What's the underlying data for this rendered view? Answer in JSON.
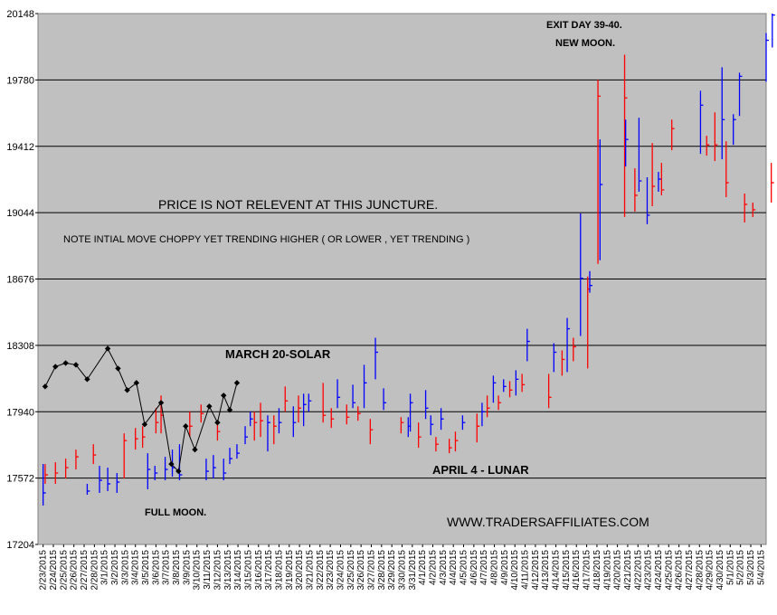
{
  "chart_data": {
    "type": "bar",
    "subtype": "ohlc-range",
    "title": "",
    "xlabel": "",
    "ylabel": "",
    "ylim": [
      17204,
      20148
    ],
    "yticks": [
      17204,
      17572,
      17940,
      18308,
      18676,
      19044,
      19412,
      19780,
      20148
    ],
    "grid": "horizontal",
    "legend": "none",
    "colors": {
      "plot_bg": "#c0c0c0",
      "up": "#ff0000",
      "down": "#0000ff",
      "overlay": "#000000",
      "grid": "#000000"
    },
    "x": [
      "2/23/2015",
      "2/24/2015",
      "2/25/2015",
      "2/26/2015",
      "2/27/2015",
      "2/28/2015",
      "3/1/2015",
      "3/2/2015",
      "3/3/2015",
      "3/4/2015",
      "3/5/2015",
      "3/6/2015",
      "3/7/2015",
      "3/8/2015",
      "3/9/2015",
      "3/10/2015",
      "3/11/2015",
      "3/12/2015",
      "3/13/2015",
      "3/14/2015",
      "3/15/2015",
      "3/16/2015",
      "3/17/2015",
      "3/18/2015",
      "3/19/2015",
      "3/20/2015",
      "3/21/2015",
      "3/22/2015",
      "3/23/2015",
      "3/24/2015",
      "3/25/2015",
      "3/26/2015",
      "3/27/2015",
      "3/28/2015",
      "3/29/2015",
      "3/30/2015",
      "3/31/2015",
      "4/1/2015",
      "4/2/2015",
      "4/3/2015",
      "4/4/2015",
      "4/5/2015",
      "4/6/2015",
      "4/7/2015",
      "4/8/2015",
      "4/9/2015",
      "4/10/2015",
      "4/11/2015",
      "4/12/2015",
      "4/13/2015",
      "4/14/2015",
      "4/15/2015",
      "4/16/2015",
      "4/17/2015",
      "4/18/2015",
      "4/19/2015",
      "4/20/2015",
      "4/21/2015",
      "4/22/2015",
      "4/23/2015",
      "4/24/2015",
      "4/25/2015",
      "4/26/2015",
      "4/27/2015",
      "4/28/2015",
      "4/29/2015",
      "4/30/2015",
      "5/1/2015",
      "5/2/2015",
      "5/3/2015",
      "5/4/2015"
    ],
    "x_tick_labels": [
      "2/23/2015",
      "2/24/2015",
      "2/25/2015",
      "2/26/2015",
      "2/27/2015",
      "2/28/2015",
      "3/1/2015",
      "3/2/2015",
      "3/3/2015",
      "3/4/2015",
      "3/5/2015",
      "3/6/2015",
      "3/7/2015",
      "3/8/2015",
      "3/9/2015",
      "3/10/2015",
      "3/11/2015",
      "3/12/2015",
      "3/13/2015",
      "3/14/2015",
      "3/15/2015",
      "3/16/2015",
      "3/17/2015",
      "3/18/2015",
      "3/19/2015",
      "3/20/2015",
      "3/21/2015",
      "3/22/2015",
      "3/23/2015",
      "3/24/2015",
      "3/25/2015",
      "3/26/2015",
      "3/27/2015",
      "3/28/2015",
      "3/29/2015",
      "3/30/2015",
      "3/31/2015",
      "4/1/2015",
      "4/2/2015",
      "4/3/2015",
      "4/4/2015",
      "4/5/2015",
      "4/6/2015",
      "4/7/2015",
      "4/8/2015",
      "4/9/2015",
      "4/10/2015",
      "4/11/2015",
      "4/12/2015",
      "4/13/2015",
      "4/14/2015",
      "4/15/2015",
      "4/16/2015",
      "4/17/2015",
      "4/18/2015",
      "4/19/2015",
      "4/20/2015",
      "4/21/2015",
      "4/22/2015",
      "4/23/2015",
      "4/24/2015",
      "4/25/2015",
      "4/26/2015",
      "4/27/2015",
      "4/28/2015",
      "4/29/2015",
      "4/30/2015",
      "5/1/2015",
      "5/2/2015",
      "5/3/2015",
      "5/4/2015"
    ],
    "bars": [
      {
        "x": 0,
        "low": 17420,
        "high": 17650,
        "close": 17490,
        "color": "blue"
      },
      {
        "x": 0.2,
        "low": 17540,
        "high": 17650,
        "close": 17590,
        "color": "red"
      },
      {
        "x": 1.2,
        "low": 17540,
        "high": 17660,
        "close": 17600,
        "color": "red"
      },
      {
        "x": 2.2,
        "low": 17570,
        "high": 17680,
        "close": 17630,
        "color": "red"
      },
      {
        "x": 3.2,
        "low": 17620,
        "high": 17730,
        "close": 17690,
        "color": "red"
      },
      {
        "x": 4.3,
        "low": 17480,
        "high": 17540,
        "close": 17500,
        "color": "blue"
      },
      {
        "x": 4.9,
        "low": 17650,
        "high": 17760,
        "close": 17700,
        "color": "red"
      },
      {
        "x": 5.5,
        "low": 17490,
        "high": 17640,
        "close": 17560,
        "color": "blue"
      },
      {
        "x": 6.3,
        "low": 17500,
        "high": 17630,
        "close": 17540,
        "color": "blue"
      },
      {
        "x": 7.2,
        "low": 17490,
        "high": 17600,
        "close": 17550,
        "color": "blue"
      },
      {
        "x": 7.9,
        "low": 17570,
        "high": 17820,
        "close": 17780,
        "color": "red"
      },
      {
        "x": 9.0,
        "low": 17730,
        "high": 17850,
        "close": 17790,
        "color": "red"
      },
      {
        "x": 9.7,
        "low": 17740,
        "high": 17860,
        "close": 17800,
        "color": "red"
      },
      {
        "x": 10.2,
        "low": 17510,
        "high": 17710,
        "close": 17620,
        "color": "blue"
      },
      {
        "x": 10.9,
        "low": 17560,
        "high": 17640,
        "close": 17600,
        "color": "blue"
      },
      {
        "x": 11.0,
        "low": 17820,
        "high": 17960,
        "close": 17880,
        "color": "red"
      },
      {
        "x": 11.5,
        "low": 17820,
        "high": 18030,
        "close": 17920,
        "color": "red"
      },
      {
        "x": 11.9,
        "low": 17560,
        "high": 17690,
        "close": 17620,
        "color": "blue"
      },
      {
        "x": 12.6,
        "low": 17580,
        "high": 17730,
        "close": 17630,
        "color": "blue"
      },
      {
        "x": 13.3,
        "low": 17560,
        "high": 17760,
        "close": 17590,
        "color": "blue"
      },
      {
        "x": 14.3,
        "low": 17800,
        "high": 17940,
        "close": 17860,
        "color": "red"
      },
      {
        "x": 15.4,
        "low": 17880,
        "high": 17980,
        "close": 17930,
        "color": "red"
      },
      {
        "x": 15.9,
        "low": 17560,
        "high": 17680,
        "close": 17610,
        "color": "blue"
      },
      {
        "x": 16.6,
        "low": 17570,
        "high": 17700,
        "close": 17630,
        "color": "blue"
      },
      {
        "x": 17.0,
        "low": 17780,
        "high": 17880,
        "close": 17830,
        "color": "red"
      },
      {
        "x": 17.6,
        "low": 17560,
        "high": 17680,
        "close": 17600,
        "color": "blue"
      },
      {
        "x": 18.2,
        "low": 17650,
        "high": 17740,
        "close": 17680,
        "color": "blue"
      },
      {
        "x": 18.9,
        "low": 17680,
        "high": 17760,
        "close": 17710,
        "color": "blue"
      },
      {
        "x": 19.7,
        "low": 17760,
        "high": 17860,
        "close": 17800,
        "color": "blue"
      },
      {
        "x": 20.2,
        "low": 17860,
        "high": 17940,
        "close": 17900,
        "color": "blue"
      },
      {
        "x": 20.6,
        "low": 17780,
        "high": 17940,
        "close": 17880,
        "color": "red"
      },
      {
        "x": 21.2,
        "low": 17800,
        "high": 17990,
        "close": 17890,
        "color": "red"
      },
      {
        "x": 21.9,
        "low": 17720,
        "high": 17920,
        "close": 17880,
        "color": "blue"
      },
      {
        "x": 22.5,
        "low": 17760,
        "high": 17920,
        "close": 17860,
        "color": "red"
      },
      {
        "x": 23.0,
        "low": 17820,
        "high": 17960,
        "close": 17880,
        "color": "blue"
      },
      {
        "x": 23.6,
        "low": 17940,
        "high": 18080,
        "close": 18000,
        "color": "red"
      },
      {
        "x": 24.4,
        "low": 17800,
        "high": 17970,
        "close": 17880,
        "color": "blue"
      },
      {
        "x": 24.9,
        "low": 17880,
        "high": 18030,
        "close": 17960,
        "color": "red"
      },
      {
        "x": 25.4,
        "low": 17860,
        "high": 18040,
        "close": 17980,
        "color": "blue"
      },
      {
        "x": 25.9,
        "low": 17940,
        "high": 18040,
        "close": 18000,
        "color": "blue"
      },
      {
        "x": 27.3,
        "low": 17880,
        "high": 18100,
        "close": 17920,
        "color": "red"
      },
      {
        "x": 28.1,
        "low": 17850,
        "high": 17960,
        "close": 17900,
        "color": "red"
      },
      {
        "x": 28.7,
        "low": 17960,
        "high": 18120,
        "close": 18020,
        "color": "blue"
      },
      {
        "x": 29.6,
        "low": 17870,
        "high": 17980,
        "close": 17910,
        "color": "red"
      },
      {
        "x": 30.2,
        "low": 17960,
        "high": 18090,
        "close": 17990,
        "color": "blue"
      },
      {
        "x": 30.7,
        "low": 17890,
        "high": 17970,
        "close": 17930,
        "color": "red"
      },
      {
        "x": 31.3,
        "low": 17960,
        "high": 18200,
        "close": 18100,
        "color": "blue"
      },
      {
        "x": 31.9,
        "low": 17760,
        "high": 17900,
        "close": 17840,
        "color": "red"
      },
      {
        "x": 32.4,
        "low": 18120,
        "high": 18350,
        "close": 18270,
        "color": "blue"
      },
      {
        "x": 33.2,
        "low": 17950,
        "high": 18070,
        "close": 17990,
        "color": "blue"
      },
      {
        "x": 34.9,
        "low": 17820,
        "high": 17910,
        "close": 17880,
        "color": "red"
      },
      {
        "x": 35.6,
        "low": 17800,
        "high": 17910,
        "close": 17860,
        "color": "blue"
      },
      {
        "x": 35.8,
        "low": 17830,
        "high": 18040,
        "close": 17990,
        "color": "blue"
      },
      {
        "x": 36.6,
        "low": 17740,
        "high": 17880,
        "close": 17800,
        "color": "red"
      },
      {
        "x": 37.3,
        "low": 17900,
        "high": 18060,
        "close": 17960,
        "color": "blue"
      },
      {
        "x": 37.8,
        "low": 17810,
        "high": 17920,
        "close": 17870,
        "color": "blue"
      },
      {
        "x": 38.3,
        "low": 17720,
        "high": 17800,
        "close": 17760,
        "color": "red"
      },
      {
        "x": 38.8,
        "low": 17840,
        "high": 17960,
        "close": 17900,
        "color": "blue"
      },
      {
        "x": 39.6,
        "low": 17710,
        "high": 17790,
        "close": 17740,
        "color": "red"
      },
      {
        "x": 40.2,
        "low": 17720,
        "high": 17830,
        "close": 17780,
        "color": "red"
      },
      {
        "x": 40.9,
        "low": 17840,
        "high": 17920,
        "close": 17880,
        "color": "blue"
      },
      {
        "x": 42.3,
        "low": 17770,
        "high": 17930,
        "close": 17860,
        "color": "red"
      },
      {
        "x": 42.8,
        "low": 17860,
        "high": 17990,
        "close": 17940,
        "color": "blue"
      },
      {
        "x": 43.3,
        "low": 17910,
        "high": 18030,
        "close": 17960,
        "color": "red"
      },
      {
        "x": 43.9,
        "low": 17990,
        "high": 18140,
        "close": 18100,
        "color": "blue"
      },
      {
        "x": 44.4,
        "low": 17950,
        "high": 18030,
        "close": 17990,
        "color": "red"
      },
      {
        "x": 44.9,
        "low": 18050,
        "high": 18120,
        "close": 18080,
        "color": "blue"
      },
      {
        "x": 45.5,
        "low": 18020,
        "high": 18110,
        "close": 18060,
        "color": "red"
      },
      {
        "x": 46.1,
        "low": 18030,
        "high": 18170,
        "close": 18120,
        "color": "blue"
      },
      {
        "x": 46.7,
        "low": 18050,
        "high": 18150,
        "close": 18090,
        "color": "red"
      },
      {
        "x": 47.2,
        "low": 18220,
        "high": 18400,
        "close": 18330,
        "color": "blue"
      },
      {
        "x": 49.3,
        "low": 17960,
        "high": 18150,
        "close": 18020,
        "color": "red"
      },
      {
        "x": 49.8,
        "low": 18160,
        "high": 18320,
        "close": 18270,
        "color": "blue"
      },
      {
        "x": 50.6,
        "low": 18140,
        "high": 18280,
        "close": 18230,
        "color": "red"
      },
      {
        "x": 51.1,
        "low": 18160,
        "high": 18460,
        "close": 18400,
        "color": "blue"
      },
      {
        "x": 51.7,
        "low": 18220,
        "high": 18350,
        "close": 18300,
        "color": "red"
      },
      {
        "x": 52.4,
        "low": 18360,
        "high": 19040,
        "close": 18680,
        "color": "blue"
      },
      {
        "x": 53.1,
        "low": 18180,
        "high": 18690,
        "close": 18620,
        "color": "red"
      },
      {
        "x": 53.3,
        "low": 18600,
        "high": 18720,
        "close": 18640,
        "color": "blue"
      },
      {
        "x": 54.1,
        "low": 18760,
        "high": 19780,
        "close": 19690,
        "color": "red"
      },
      {
        "x": 54.3,
        "low": 18780,
        "high": 19450,
        "close": 19200,
        "color": "blue"
      },
      {
        "x": 56.7,
        "low": 19020,
        "high": 19920,
        "close": 19680,
        "color": "red"
      },
      {
        "x": 56.8,
        "low": 19300,
        "high": 19560,
        "close": 19450,
        "color": "blue"
      },
      {
        "x": 57.7,
        "low": 19050,
        "high": 19290,
        "close": 19140,
        "color": "red"
      },
      {
        "x": 58.1,
        "low": 19160,
        "high": 19570,
        "close": 19220,
        "color": "blue"
      },
      {
        "x": 58.9,
        "low": 18980,
        "high": 19240,
        "close": 19030,
        "color": "blue"
      },
      {
        "x": 59.4,
        "low": 19080,
        "high": 19430,
        "close": 19190,
        "color": "red"
      },
      {
        "x": 60.0,
        "low": 19160,
        "high": 19270,
        "close": 19230,
        "color": "blue"
      },
      {
        "x": 60.3,
        "low": 19140,
        "high": 19320,
        "close": 19170,
        "color": "red"
      },
      {
        "x": 61.3,
        "low": 19390,
        "high": 19560,
        "close": 19510,
        "color": "red"
      },
      {
        "x": 64.1,
        "low": 19370,
        "high": 19720,
        "close": 19640,
        "color": "blue"
      },
      {
        "x": 64.7,
        "low": 19360,
        "high": 19470,
        "close": 19420,
        "color": "red"
      },
      {
        "x": 65.5,
        "low": 19330,
        "high": 19600,
        "close": 19420,
        "color": "red"
      },
      {
        "x": 66.2,
        "low": 19340,
        "high": 19850,
        "close": 19560,
        "color": "blue"
      },
      {
        "x": 66.6,
        "low": 19130,
        "high": 19440,
        "close": 19210,
        "color": "red"
      },
      {
        "x": 67.3,
        "low": 19420,
        "high": 19590,
        "close": 19560,
        "color": "blue"
      },
      {
        "x": 67.9,
        "low": 19580,
        "high": 19820,
        "close": 19800,
        "color": "blue"
      },
      {
        "x": 68.4,
        "low": 18990,
        "high": 19150,
        "close": 19090,
        "color": "red"
      },
      {
        "x": 69.2,
        "low": 19020,
        "high": 19100,
        "close": 19060,
        "color": "red"
      },
      {
        "x": 70.5,
        "low": 19770,
        "high": 20040,
        "close": 20000,
        "color": "blue"
      },
      {
        "x": 71.1,
        "low": 19960,
        "high": 20148,
        "close": 20140,
        "color": "blue"
      },
      {
        "x": 71.0,
        "low": 19100,
        "high": 19320,
        "close": 19210,
        "color": "red"
      }
    ],
    "overlay_series": {
      "color": "#000000",
      "marker": "diamond",
      "points": [
        [
          0.2,
          18080
        ],
        [
          1.2,
          18190
        ],
        [
          2.2,
          18210
        ],
        [
          3.2,
          18200
        ],
        [
          4.3,
          18120
        ],
        [
          6.3,
          18290
        ],
        [
          7.3,
          18180
        ],
        [
          8.2,
          18060
        ],
        [
          9.1,
          18100
        ],
        [
          9.9,
          17870
        ],
        [
          11.5,
          17990
        ],
        [
          12.5,
          17650
        ],
        [
          13.2,
          17610
        ],
        [
          13.9,
          17860
        ],
        [
          14.8,
          17730
        ],
        [
          16.2,
          17970
        ],
        [
          17.0,
          17880
        ],
        [
          17.6,
          18030
        ],
        [
          18.2,
          17950
        ],
        [
          18.9,
          18100
        ]
      ]
    },
    "annotations": [
      {
        "text": "EXIT DAY 39-40.",
        "id": "exit-day"
      },
      {
        "text": "NEW MOON.",
        "id": "new-moon"
      },
      {
        "text": "PRICE IS NOT RELEVENT AT THIS JUNCTURE.",
        "id": "price-note"
      },
      {
        "text": "NOTE INTIAL MOVE CHOPPY YET TRENDING HIGHER ( OR LOWER , YET TRENDING )",
        "id": "trend-note"
      },
      {
        "text": "MARCH 20-SOLAR",
        "id": "march-solar"
      },
      {
        "text": "APRIL 4 - LUNAR",
        "id": "april-lunar"
      },
      {
        "text": "FULL MOON.",
        "id": "full-moon"
      },
      {
        "text": "WWW.TRADERSAFFILIATES.COM",
        "id": "website"
      }
    ]
  }
}
